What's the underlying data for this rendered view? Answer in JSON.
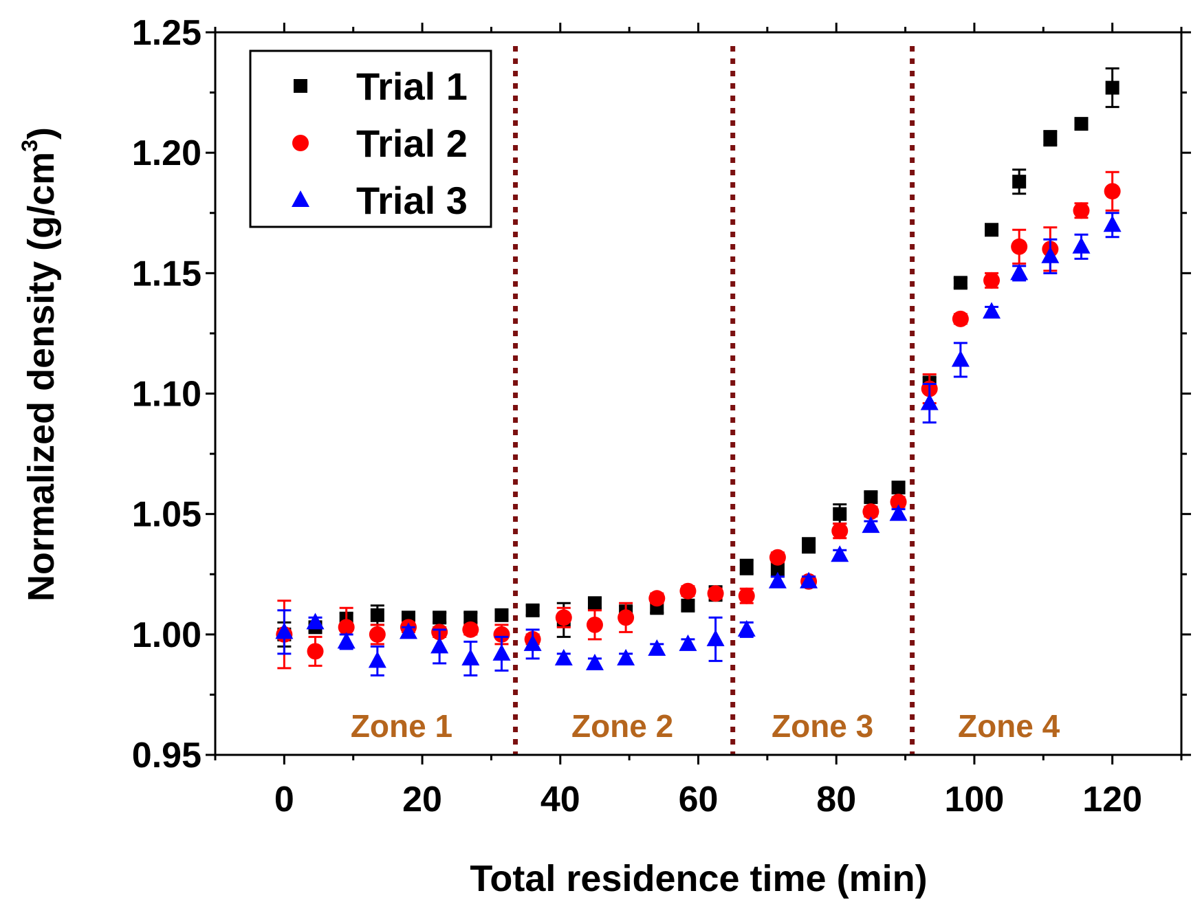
{
  "chart_data": {
    "type": "scatter",
    "title": "",
    "xlabel": "Total residence time (min)",
    "ylabel_main": "Normalized density (g/cm",
    "ylabel_sup": "3",
    "ylabel_close": ")",
    "xlim": [
      -10,
      130
    ],
    "ylim": [
      0.95,
      1.25
    ],
    "xticks": [
      0,
      20,
      40,
      60,
      80,
      100,
      120
    ],
    "xtick_labels": [
      "0",
      "20",
      "40",
      "60",
      "80",
      "100",
      "120"
    ],
    "yticks": [
      0.95,
      1.0,
      1.05,
      1.1,
      1.15,
      1.2,
      1.25
    ],
    "ytick_labels": [
      "0.95",
      "1.00",
      "1.05",
      "1.10",
      "1.15",
      "1.20",
      "1.25"
    ],
    "grid": false,
    "legend_position": "top-left",
    "zone_boundaries": [
      33.5,
      65,
      91
    ],
    "boundary_color": "#7b1010",
    "zones": [
      {
        "label": "Zone 1",
        "x": 17
      },
      {
        "label": "Zone 2",
        "x": 49
      },
      {
        "label": "Zone 3",
        "x": 78
      },
      {
        "label": "Zone 4",
        "x": 105
      }
    ],
    "zone_color": "#b5651d",
    "series": [
      {
        "name": "Trial 1",
        "color": "#000000",
        "marker": "square",
        "points": [
          [
            0,
            1.0,
            0.005
          ],
          [
            4.5,
            1.003,
            0.002
          ],
          [
            9,
            1.006,
            0.003
          ],
          [
            13.5,
            1.008,
            0.004
          ],
          [
            18,
            1.007,
            0.002
          ],
          [
            22.5,
            1.007,
            0.002
          ],
          [
            27,
            1.007,
            0.002
          ],
          [
            31.5,
            1.008,
            0.002
          ],
          [
            36,
            1.01,
            0.002
          ],
          [
            40.5,
            1.006,
            0.007
          ],
          [
            45,
            1.013,
            0.002
          ],
          [
            49.5,
            1.009,
            0.003
          ],
          [
            54,
            1.011,
            0.002
          ],
          [
            58.5,
            1.012,
            0.002
          ],
          [
            62.5,
            1.017,
            0.003
          ],
          [
            67,
            1.028,
            0.003
          ],
          [
            71.5,
            1.027,
            0.003
          ],
          [
            76,
            1.037,
            0.003
          ],
          [
            80.5,
            1.05,
            0.004
          ],
          [
            85,
            1.057,
            0.002
          ],
          [
            89,
            1.061,
            0.002
          ],
          [
            93.5,
            1.104,
            0.003
          ],
          [
            98,
            1.146,
            0.002
          ],
          [
            102.5,
            1.168,
            0.002
          ],
          [
            106.5,
            1.188,
            0.005
          ],
          [
            111,
            1.206,
            0.003
          ],
          [
            115.5,
            1.212,
            0.002
          ],
          [
            120,
            1.227,
            0.008
          ]
        ]
      },
      {
        "name": "Trial 2",
        "color": "#ff0000",
        "marker": "circle",
        "points": [
          [
            0,
            1.0,
            0.014
          ],
          [
            4.5,
            0.993,
            0.006
          ],
          [
            9,
            1.003,
            0.008
          ],
          [
            13.5,
            1.0,
            0.004
          ],
          [
            18,
            1.003,
            0.002
          ],
          [
            22.5,
            1.001,
            0.002
          ],
          [
            27,
            1.002,
            0.002
          ],
          [
            31.5,
            1.0,
            0.004
          ],
          [
            36,
            0.998,
            0.002
          ],
          [
            40.5,
            1.007,
            0.004
          ],
          [
            45,
            1.004,
            0.006
          ],
          [
            49.5,
            1.007,
            0.006
          ],
          [
            54,
            1.015,
            0.002
          ],
          [
            58.5,
            1.018,
            0.002
          ],
          [
            62.5,
            1.017,
            0.002
          ],
          [
            67,
            1.016,
            0.003
          ],
          [
            71.5,
            1.032,
            0.002
          ],
          [
            76,
            1.022,
            0.002
          ],
          [
            80.5,
            1.043,
            0.003
          ],
          [
            85,
            1.051,
            0.002
          ],
          [
            89,
            1.055,
            0.002
          ],
          [
            93.5,
            1.102,
            0.006
          ],
          [
            98,
            1.131,
            0.002
          ],
          [
            102.5,
            1.147,
            0.003
          ],
          [
            106.5,
            1.161,
            0.007
          ],
          [
            111,
            1.16,
            0.009
          ],
          [
            115.5,
            1.176,
            0.003
          ],
          [
            120,
            1.184,
            0.008
          ]
        ]
      },
      {
        "name": "Trial 3",
        "color": "#0000ff",
        "marker": "triangle",
        "points": [
          [
            0,
            1.001,
            0.009
          ],
          [
            4.5,
            1.005,
            0.002
          ],
          [
            9,
            0.997,
            0.003
          ],
          [
            13.5,
            0.989,
            0.006
          ],
          [
            18,
            1.001,
            0.002
          ],
          [
            22.5,
            0.995,
            0.007
          ],
          [
            27,
            0.99,
            0.007
          ],
          [
            31.5,
            0.992,
            0.007
          ],
          [
            36,
            0.996,
            0.006
          ],
          [
            40.5,
            0.99,
            0.002
          ],
          [
            45,
            0.988,
            0.002
          ],
          [
            49.5,
            0.99,
            0.002
          ],
          [
            54,
            0.994,
            0.002
          ],
          [
            58.5,
            0.996,
            0.002
          ],
          [
            62.5,
            0.998,
            0.009
          ],
          [
            67,
            1.002,
            0.003
          ],
          [
            71.5,
            1.022,
            0.002
          ],
          [
            76,
            1.022,
            0.002
          ],
          [
            80.5,
            1.033,
            0.002
          ],
          [
            85,
            1.045,
            0.002
          ],
          [
            89,
            1.05,
            0.002
          ],
          [
            93.5,
            1.096,
            0.008
          ],
          [
            98,
            1.114,
            0.007
          ],
          [
            102.5,
            1.134,
            0.002
          ],
          [
            106.5,
            1.15,
            0.003
          ],
          [
            111,
            1.157,
            0.007
          ],
          [
            115.5,
            1.161,
            0.005
          ],
          [
            120,
            1.17,
            0.005
          ]
        ]
      }
    ]
  }
}
